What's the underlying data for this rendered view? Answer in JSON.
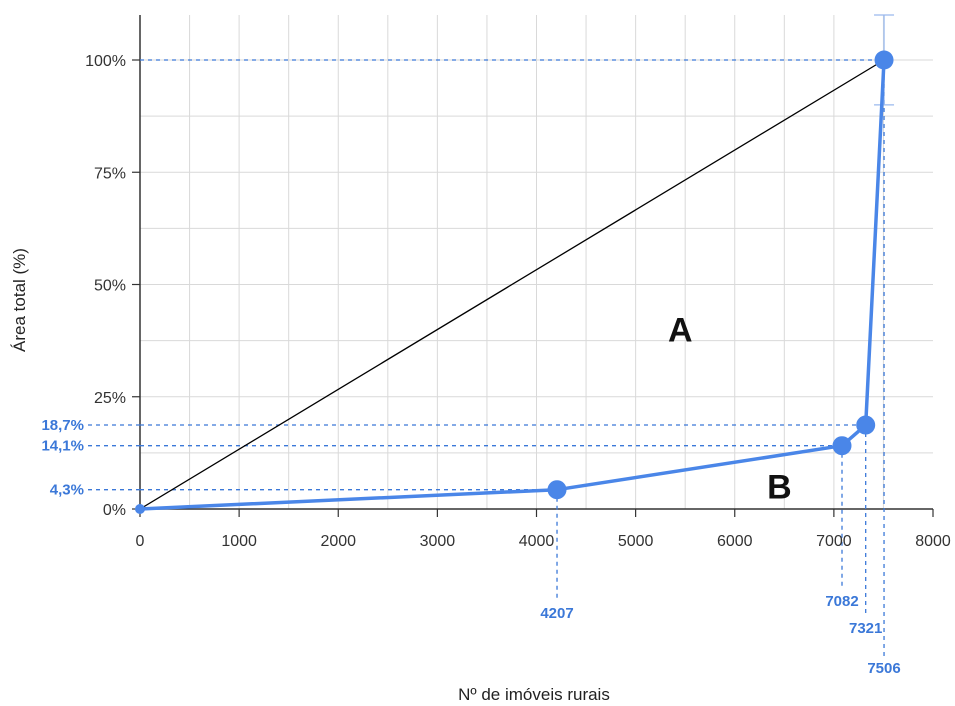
{
  "chart_data": {
    "type": "line",
    "title": "",
    "xlabel": "Nº de imóveis rurais",
    "ylabel": "Área total (%)",
    "xlim": [
      0,
      8000
    ],
    "ylim": [
      0,
      100
    ],
    "grid": true,
    "x_ticks": [
      0,
      1000,
      2000,
      3000,
      4000,
      5000,
      6000,
      7000,
      8000
    ],
    "y_ticks": [
      {
        "value": 0,
        "label": "0%"
      },
      {
        "value": 25,
        "label": "25%"
      },
      {
        "value": 50,
        "label": "50%"
      },
      {
        "value": 75,
        "label": "75%"
      },
      {
        "value": 100,
        "label": "100%"
      }
    ],
    "series": [
      {
        "type": "line",
        "color": "#4a86e8",
        "x": [
          0,
          4207,
          7082,
          7321,
          7506
        ],
        "y": [
          0,
          4.3,
          14.1,
          18.7,
          100
        ]
      },
      {
        "type": "line",
        "color": "#000000",
        "x": [
          0,
          7506
        ],
        "y": [
          0,
          100
        ]
      }
    ],
    "annotations": {
      "x_markers": [
        {
          "value": 4207,
          "label": "4207"
        },
        {
          "value": 7082,
          "label": "7082"
        },
        {
          "value": 7321,
          "label": "7321"
        },
        {
          "value": 7506,
          "label": "7506"
        }
      ],
      "y_markers": [
        {
          "value": 4.3,
          "label": "4,3%"
        },
        {
          "value": 14.1,
          "label": "14,1%"
        },
        {
          "value": 18.7,
          "label": "18,7%"
        },
        {
          "value": 100,
          "label": ""
        }
      ],
      "regions": [
        {
          "label": "A",
          "x": 5450,
          "y": 40
        },
        {
          "label": "B",
          "x": 6450,
          "y": 5
        }
      ]
    },
    "colors": {
      "accent": "#4a86e8",
      "annotation": "#3b78d8",
      "grid": "#d9d9d9",
      "diagonal": "#000000"
    }
  }
}
